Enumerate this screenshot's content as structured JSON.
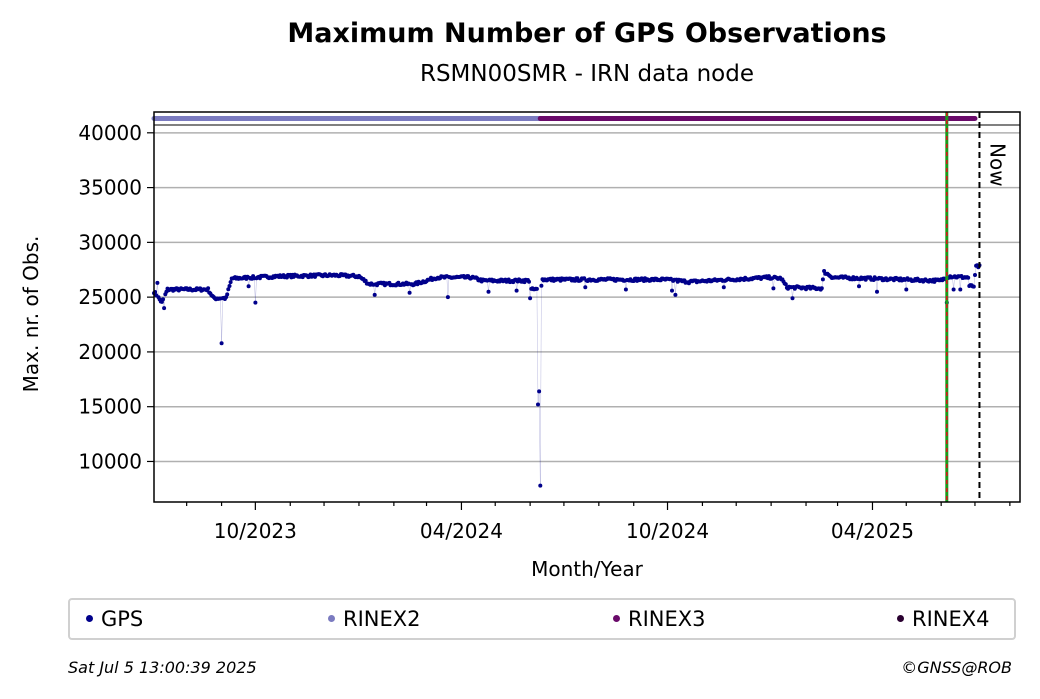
{
  "chart_data": {
    "type": "scatter",
    "title": "Maximum Number of GPS Observations",
    "subtitle": "RSMN00SMR - IRN data node",
    "xlabel": "Month/Year",
    "ylabel": "Max. nr. of Obs.",
    "x_tick_labels": [
      "10/2023",
      "04/2024",
      "10/2024",
      "04/2025"
    ],
    "y_ticks": [
      10000,
      15000,
      20000,
      25000,
      30000,
      35000,
      40000
    ],
    "xlim": [
      "2023-07-03",
      "2025-08-10"
    ],
    "ylim": [
      6300,
      41900
    ],
    "grid": "horizontal",
    "now_label": "Now",
    "now_date": "2025-07-05",
    "marker_date": "2025-06-06",
    "rinex_bands": [
      {
        "name": "RINEX2",
        "start": "2023-07-03",
        "end": "2024-06-10",
        "color": "#7b7bc0"
      },
      {
        "name": "RINEX3",
        "start": "2024-06-10",
        "end": "2025-07-01",
        "color": "#6a0a6a"
      }
    ],
    "series": [
      {
        "name": "GPS",
        "color": "#00008b",
        "start_date": "2023-07-03",
        "end_date": "2025-07-05",
        "anchors": [
          [
            "2023-07-03",
            25500
          ],
          [
            "2023-07-10",
            24500
          ],
          [
            "2023-07-15",
            25700
          ],
          [
            "2023-08-20",
            25700
          ],
          [
            "2023-08-25",
            24900
          ],
          [
            "2023-09-05",
            24900
          ],
          [
            "2023-09-10",
            26700
          ],
          [
            "2023-10-20",
            26900
          ],
          [
            "2023-12-10",
            27000
          ],
          [
            "2024-01-01",
            26900
          ],
          [
            "2024-01-10",
            26200
          ],
          [
            "2024-02-20",
            26200
          ],
          [
            "2024-03-10",
            26800
          ],
          [
            "2024-04-10",
            26800
          ],
          [
            "2024-04-20",
            26500
          ],
          [
            "2024-05-31",
            26500
          ],
          [
            "2024-06-01",
            25700
          ],
          [
            "2024-06-10",
            25700
          ],
          [
            "2024-06-12",
            26600
          ],
          [
            "2024-09-30",
            26600
          ],
          [
            "2024-10-20",
            26400
          ],
          [
            "2024-12-31",
            26800
          ],
          [
            "2025-01-10",
            26700
          ],
          [
            "2025-01-15",
            25900
          ],
          [
            "2025-02-15",
            25800
          ],
          [
            "2025-02-17",
            27300
          ],
          [
            "2025-02-25",
            26800
          ],
          [
            "2025-05-31",
            26500
          ],
          [
            "2025-06-08",
            26900
          ],
          [
            "2025-06-25",
            26800
          ],
          [
            "2025-06-26",
            26000
          ],
          [
            "2025-06-30",
            26000
          ],
          [
            "2025-07-02",
            27800
          ],
          [
            "2025-07-05",
            27800
          ]
        ],
        "outliers": [
          [
            "2023-07-06",
            26300
          ],
          [
            "2023-07-12",
            24000
          ],
          [
            "2023-09-01",
            20800
          ],
          [
            "2023-10-01",
            24500
          ],
          [
            "2023-09-25",
            26000
          ],
          [
            "2024-01-15",
            25200
          ],
          [
            "2024-02-15",
            25400
          ],
          [
            "2024-03-20",
            25000
          ],
          [
            "2024-04-25",
            25500
          ],
          [
            "2024-05-20",
            25600
          ],
          [
            "2024-06-01",
            24900
          ],
          [
            "2024-06-08",
            15200
          ],
          [
            "2024-06-09",
            16400
          ],
          [
            "2024-06-10",
            7800
          ],
          [
            "2024-07-20",
            25900
          ],
          [
            "2024-08-25",
            25700
          ],
          [
            "2024-10-05",
            25600
          ],
          [
            "2024-10-08",
            25200
          ],
          [
            "2024-11-20",
            25900
          ],
          [
            "2025-01-03",
            25800
          ],
          [
            "2025-01-20",
            24900
          ],
          [
            "2025-03-20",
            26000
          ],
          [
            "2025-04-05",
            25500
          ],
          [
            "2025-05-01",
            25700
          ],
          [
            "2025-06-06",
            24500
          ],
          [
            "2025-06-12",
            25700
          ],
          [
            "2025-06-18",
            25700
          ]
        ]
      }
    ],
    "legend": [
      "GPS",
      "RINEX2",
      "RINEX3",
      "RINEX4"
    ],
    "legend_colors": [
      "#00008b",
      "#7b7bc0",
      "#6a0a6a",
      "#2a0030"
    ]
  },
  "footer": {
    "timestamp": "Sat Jul  5 13:00:39 2025",
    "copyright": "©GNSS@ROB"
  }
}
